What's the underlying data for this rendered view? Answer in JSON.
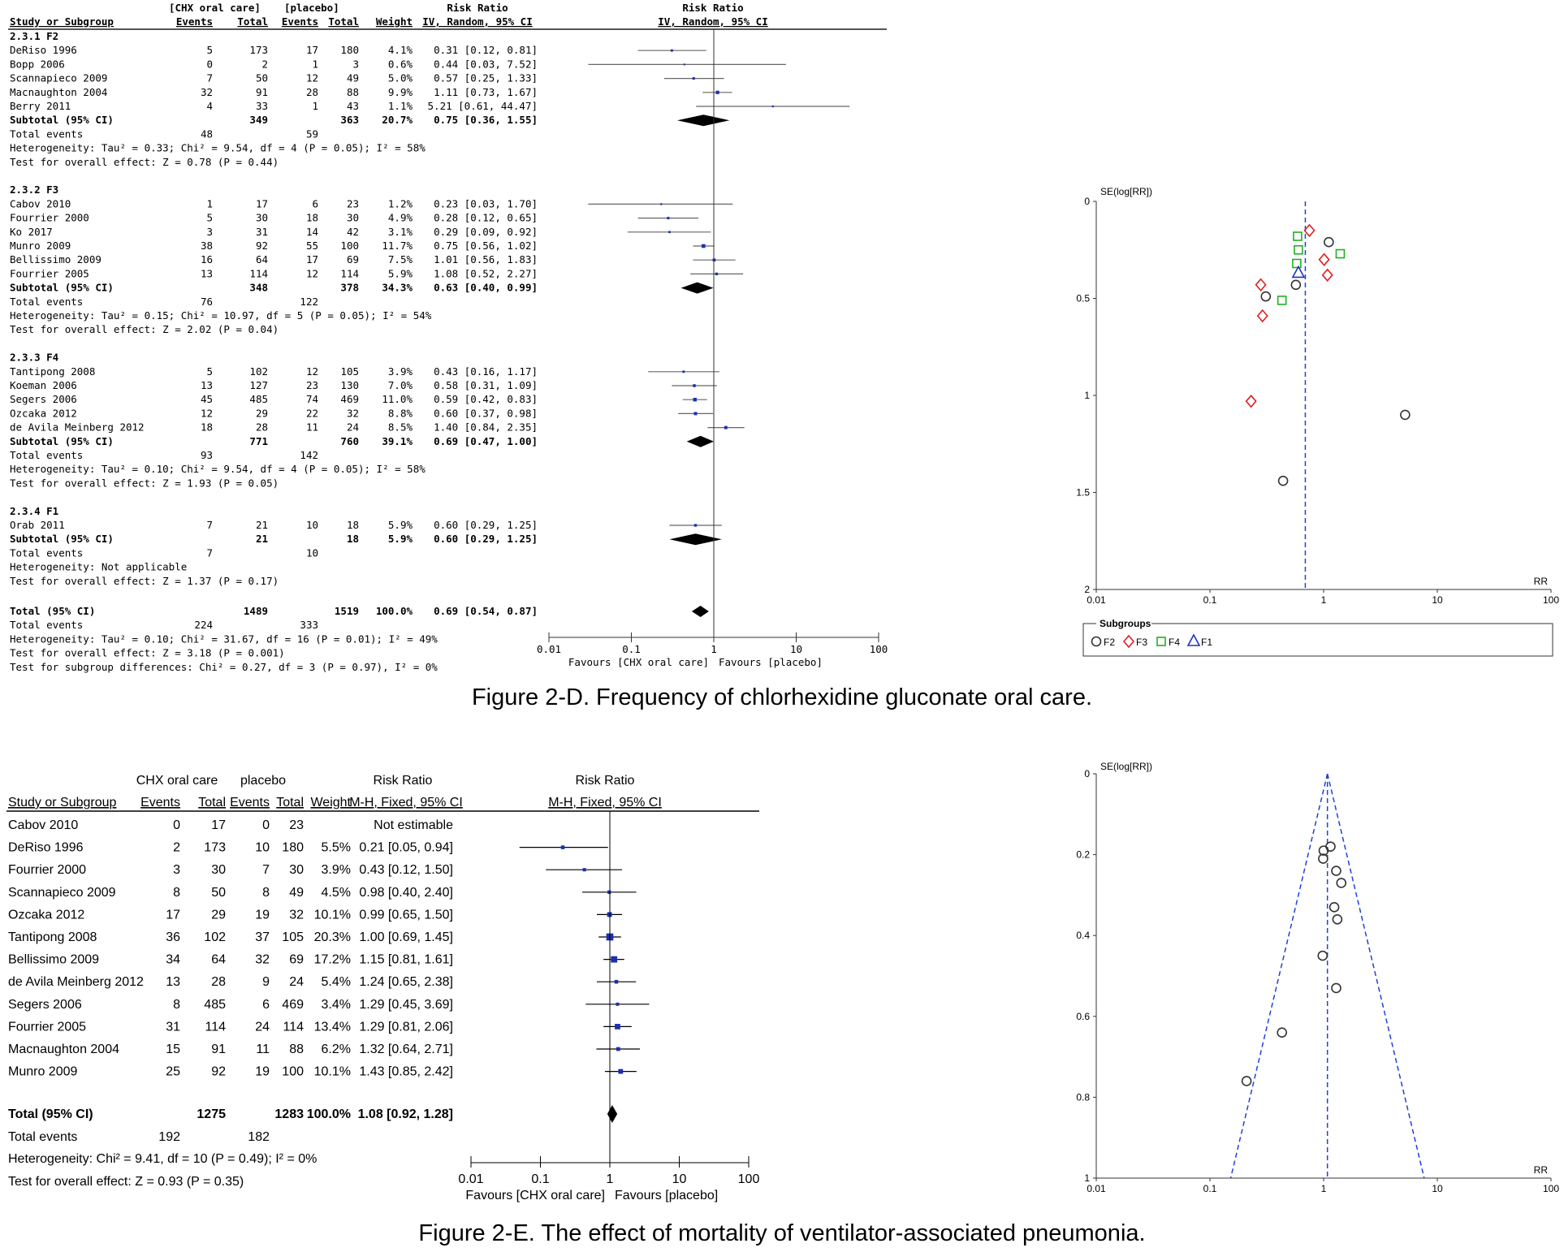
{
  "figure_d": {
    "caption": "Figure 2-D. Frequency of chlorhexidine gluconate oral care.",
    "header": {
      "group1": "[CHX oral care]",
      "group2": "[placebo]",
      "rr": "Risk Ratio",
      "rr_plot": "Risk Ratio",
      "study": "Study or Subgroup",
      "events": "Events",
      "total": "Total",
      "weight": "Weight",
      "method": "IV, Random, 95% CI",
      "method_plot": "IV, Random, 95% CI"
    },
    "subgroups": [
      {
        "title": "2.3.1 F2",
        "studies": [
          {
            "name": "DeRiso 1996",
            "e1": "5",
            "t1": "173",
            "e2": "17",
            "t2": "180",
            "w": "4.1%",
            "ci": "0.31 [0.12, 0.81]"
          },
          {
            "name": "Bopp 2006",
            "e1": "0",
            "t1": "2",
            "e2": "1",
            "t2": "3",
            "w": "0.6%",
            "ci": "0.44 [0.03, 7.52]"
          },
          {
            "name": "Scannapieco 2009",
            "e1": "7",
            "t1": "50",
            "e2": "12",
            "t2": "49",
            "w": "5.0%",
            "ci": "0.57 [0.25, 1.33]"
          },
          {
            "name": "Macnaughton 2004",
            "e1": "32",
            "t1": "91",
            "e2": "28",
            "t2": "88",
            "w": "9.9%",
            "ci": "1.11 [0.73, 1.67]"
          },
          {
            "name": "Berry 2011",
            "e1": "4",
            "t1": "33",
            "e2": "1",
            "t2": "43",
            "w": "1.1%",
            "ci": "5.21 [0.61, 44.47]"
          }
        ],
        "subtotal": {
          "label": "Subtotal (95% CI)",
          "t1": "349",
          "t2": "363",
          "w": "20.7%",
          "ci": "0.75 [0.36, 1.55]"
        },
        "events": {
          "label": "Total events",
          "e1": "48",
          "e2": "59"
        },
        "het": "Heterogeneity: Tau² = 0.33; Chi² = 9.54, df = 4 (P = 0.05); I² = 58%",
        "test": "Test for overall effect: Z = 0.78 (P = 0.44)"
      },
      {
        "title": "2.3.2 F3",
        "studies": [
          {
            "name": "Cabov 2010",
            "e1": "1",
            "t1": "17",
            "e2": "6",
            "t2": "23",
            "w": "1.2%",
            "ci": "0.23 [0.03, 1.70]"
          },
          {
            "name": "Fourrier 2000",
            "e1": "5",
            "t1": "30",
            "e2": "18",
            "t2": "30",
            "w": "4.9%",
            "ci": "0.28 [0.12, 0.65]"
          },
          {
            "name": "Ko 2017",
            "e1": "3",
            "t1": "31",
            "e2": "14",
            "t2": "42",
            "w": "3.1%",
            "ci": "0.29 [0.09, 0.92]"
          },
          {
            "name": "Munro 2009",
            "e1": "38",
            "t1": "92",
            "e2": "55",
            "t2": "100",
            "w": "11.7%",
            "ci": "0.75 [0.56, 1.02]"
          },
          {
            "name": "Bellissimo 2009",
            "e1": "16",
            "t1": "64",
            "e2": "17",
            "t2": "69",
            "w": "7.5%",
            "ci": "1.01 [0.56, 1.83]"
          },
          {
            "name": "Fourrier 2005",
            "e1": "13",
            "t1": "114",
            "e2": "12",
            "t2": "114",
            "w": "5.9%",
            "ci": "1.08 [0.52, 2.27]"
          }
        ],
        "subtotal": {
          "label": "Subtotal (95% CI)",
          "t1": "348",
          "t2": "378",
          "w": "34.3%",
          "ci": "0.63 [0.40, 0.99]"
        },
        "events": {
          "label": "Total events",
          "e1": "76",
          "e2": "122"
        },
        "het": "Heterogeneity: Tau² = 0.15; Chi² = 10.97, df = 5 (P = 0.05); I² = 54%",
        "test": "Test for overall effect: Z = 2.02 (P = 0.04)"
      },
      {
        "title": "2.3.3 F4",
        "studies": [
          {
            "name": "Tantipong 2008",
            "e1": "5",
            "t1": "102",
            "e2": "12",
            "t2": "105",
            "w": "3.9%",
            "ci": "0.43 [0.16, 1.17]"
          },
          {
            "name": "Koeman 2006",
            "e1": "13",
            "t1": "127",
            "e2": "23",
            "t2": "130",
            "w": "7.0%",
            "ci": "0.58 [0.31, 1.09]"
          },
          {
            "name": "Segers 2006",
            "e1": "45",
            "t1": "485",
            "e2": "74",
            "t2": "469",
            "w": "11.0%",
            "ci": "0.59 [0.42, 0.83]"
          },
          {
            "name": "Ozcaka 2012",
            "e1": "12",
            "t1": "29",
            "e2": "22",
            "t2": "32",
            "w": "8.8%",
            "ci": "0.60 [0.37, 0.98]"
          },
          {
            "name": "de Avila Meinberg 2012",
            "e1": "18",
            "t1": "28",
            "e2": "11",
            "t2": "24",
            "w": "8.5%",
            "ci": "1.40 [0.84, 2.35]"
          }
        ],
        "subtotal": {
          "label": "Subtotal (95% CI)",
          "t1": "771",
          "t2": "760",
          "w": "39.1%",
          "ci": "0.69 [0.47, 1.00]"
        },
        "events": {
          "label": "Total events",
          "e1": "93",
          "e2": "142"
        },
        "het": "Heterogeneity: Tau² = 0.10; Chi² = 9.54, df = 4 (P = 0.05); I² = 58%",
        "test": "Test for overall effect: Z = 1.93 (P = 0.05)"
      },
      {
        "title": "2.3.4 F1",
        "studies": [
          {
            "name": "Orab 2011",
            "e1": "7",
            "t1": "21",
            "e2": "10",
            "t2": "18",
            "w": "5.9%",
            "ci": "0.60 [0.29, 1.25]"
          }
        ],
        "subtotal": {
          "label": "Subtotal (95% CI)",
          "t1": "21",
          "t2": "18",
          "w": "5.9%",
          "ci": "0.60 [0.29, 1.25]"
        },
        "events": {
          "label": "Total events",
          "e1": "7",
          "e2": "10"
        },
        "het": "Heterogeneity: Not applicable",
        "test": "Test for overall effect: Z = 1.37 (P = 0.17)"
      }
    ],
    "total": {
      "label": "Total (95% CI)",
      "t1": "1489",
      "t2": "1519",
      "w": "100.0%",
      "ci": "0.69 [0.54, 0.87]"
    },
    "total_events": {
      "label": "Total events",
      "e1": "224",
      "e2": "333"
    },
    "total_het": "Heterogeneity: Tau² = 0.10; Chi² = 31.67, df = 16 (P = 0.01); I² = 49%",
    "total_test": "Test for overall effect: Z = 3.18 (P = 0.001)",
    "subgroup_test": "Test for subgroup differences: Chi² = 0.27, df = 3 (P = 0.97), I² = 0%",
    "axis_ticks": [
      "0.01",
      "0.1",
      "1",
      "10",
      "100"
    ],
    "favours_left": "Favours [CHX oral care]",
    "favours_right": "Favours [placebo]"
  },
  "funnel_d": {
    "ylabel": "SE(log[RR])",
    "xlabel": "RR",
    "x_ticks": [
      "0.01",
      "0.1",
      "1",
      "10",
      "100"
    ],
    "y_ticks": [
      "0",
      "0.5",
      "1",
      "1.5",
      "2"
    ],
    "legend_title": "Subgroups",
    "legend": [
      "F2",
      "F3",
      "F4",
      "F1"
    ],
    "colors": {
      "F2": "#333333",
      "F3": "#e02020",
      "F4": "#20b020",
      "F1": "#2030c0",
      "line": "#2040e0"
    }
  },
  "figure_e": {
    "caption": "Figure 2-E. The effect of mortality of ventilator-associated pneumonia.",
    "header": {
      "group1": "CHX oral care",
      "group2": "placebo",
      "rr": "Risk Ratio",
      "rr_plot": "Risk Ratio",
      "study": "Study or Subgroup",
      "events": "Events",
      "total": "Total",
      "weight": "Weight",
      "method": "M-H, Fixed, 95% CI",
      "method_plot": "M-H, Fixed, 95% CI"
    },
    "studies": [
      {
        "name": "Cabov 2010",
        "e1": "0",
        "t1": "17",
        "e2": "0",
        "t2": "23",
        "w": "",
        "ci": "Not estimable"
      },
      {
        "name": "DeRiso 1996",
        "e1": "2",
        "t1": "173",
        "e2": "10",
        "t2": "180",
        "w": "5.5%",
        "ci": "0.21 [0.05, 0.94]"
      },
      {
        "name": "Fourrier 2000",
        "e1": "3",
        "t1": "30",
        "e2": "7",
        "t2": "30",
        "w": "3.9%",
        "ci": "0.43 [0.12, 1.50]"
      },
      {
        "name": "Scannapieco 2009",
        "e1": "8",
        "t1": "50",
        "e2": "8",
        "t2": "49",
        "w": "4.5%",
        "ci": "0.98 [0.40, 2.40]"
      },
      {
        "name": "Ozcaka 2012",
        "e1": "17",
        "t1": "29",
        "e2": "19",
        "t2": "32",
        "w": "10.1%",
        "ci": "0.99 [0.65, 1.50]"
      },
      {
        "name": "Tantipong 2008",
        "e1": "36",
        "t1": "102",
        "e2": "37",
        "t2": "105",
        "w": "20.3%",
        "ci": "1.00 [0.69, 1.45]"
      },
      {
        "name": "Bellissimo 2009",
        "e1": "34",
        "t1": "64",
        "e2": "32",
        "t2": "69",
        "w": "17.2%",
        "ci": "1.15 [0.81, 1.61]"
      },
      {
        "name": "de Avila Meinberg 2012",
        "e1": "13",
        "t1": "28",
        "e2": "9",
        "t2": "24",
        "w": "5.4%",
        "ci": "1.24 [0.65, 2.38]"
      },
      {
        "name": "Segers 2006",
        "e1": "8",
        "t1": "485",
        "e2": "6",
        "t2": "469",
        "w": "3.4%",
        "ci": "1.29 [0.45, 3.69]"
      },
      {
        "name": "Fourrier 2005",
        "e1": "31",
        "t1": "114",
        "e2": "24",
        "t2": "114",
        "w": "13.4%",
        "ci": "1.29 [0.81, 2.06]"
      },
      {
        "name": "Macnaughton 2004",
        "e1": "15",
        "t1": "91",
        "e2": "11",
        "t2": "88",
        "w": "6.2%",
        "ci": "1.32 [0.64, 2.71]"
      },
      {
        "name": "Munro 2009",
        "e1": "25",
        "t1": "92",
        "e2": "19",
        "t2": "100",
        "w": "10.1%",
        "ci": "1.43 [0.85, 2.42]"
      }
    ],
    "total": {
      "label": "Total (95% CI)",
      "t1": "1275",
      "t2": "1283",
      "w": "100.0%",
      "ci": "1.08 [0.92, 1.28]"
    },
    "total_events": {
      "label": "Total events",
      "e1": "192",
      "e2": "182"
    },
    "het": "Heterogeneity: Chi² = 9.41, df = 10 (P = 0.49); I² = 0%",
    "test": "Test for overall effect: Z = 0.93 (P = 0.35)",
    "axis_ticks": [
      "0.01",
      "0.1",
      "1",
      "10",
      "100"
    ],
    "favours_left": "Favours [CHX oral care]",
    "favours_right": "Favours [placebo]"
  },
  "funnel_e": {
    "ylabel": "SE(log[RR])",
    "xlabel": "RR",
    "x_ticks": [
      "0.01",
      "0.1",
      "1",
      "10",
      "100"
    ],
    "y_ticks": [
      "0",
      "0.2",
      "0.4",
      "0.6",
      "0.8",
      "1"
    ],
    "colors": {
      "line": "#2040e0",
      "points": "#333333"
    }
  },
  "chart_data": [
    {
      "type": "forest",
      "subgroups": [
        "F2",
        "F3",
        "F4",
        "F1"
      ],
      "studies": [
        {
          "subgroup": "F2",
          "rr": 0.31,
          "lo": 0.12,
          "hi": 0.81,
          "weight": 4.1
        },
        {
          "subgroup": "F2",
          "rr": 0.44,
          "lo": 0.03,
          "hi": 7.52,
          "weight": 0.6
        },
        {
          "subgroup": "F2",
          "rr": 0.57,
          "lo": 0.25,
          "hi": 1.33,
          "weight": 5.0
        },
        {
          "subgroup": "F2",
          "rr": 1.11,
          "lo": 0.73,
          "hi": 1.67,
          "weight": 9.9
        },
        {
          "subgroup": "F2",
          "rr": 5.21,
          "lo": 0.61,
          "hi": 44.47,
          "weight": 1.1
        },
        {
          "subgroup": "F2",
          "summary": true,
          "rr": 0.75,
          "lo": 0.36,
          "hi": 1.55
        },
        {
          "subgroup": "F3",
          "rr": 0.23,
          "lo": 0.03,
          "hi": 1.7,
          "weight": 1.2
        },
        {
          "subgroup": "F3",
          "rr": 0.28,
          "lo": 0.12,
          "hi": 0.65,
          "weight": 4.9
        },
        {
          "subgroup": "F3",
          "rr": 0.29,
          "lo": 0.09,
          "hi": 0.92,
          "weight": 3.1
        },
        {
          "subgroup": "F3",
          "rr": 0.75,
          "lo": 0.56,
          "hi": 1.02,
          "weight": 11.7
        },
        {
          "subgroup": "F3",
          "rr": 1.01,
          "lo": 0.56,
          "hi": 1.83,
          "weight": 7.5
        },
        {
          "subgroup": "F3",
          "rr": 1.08,
          "lo": 0.52,
          "hi": 2.27,
          "weight": 5.9
        },
        {
          "subgroup": "F3",
          "summary": true,
          "rr": 0.63,
          "lo": 0.4,
          "hi": 0.99
        },
        {
          "subgroup": "F4",
          "rr": 0.43,
          "lo": 0.16,
          "hi": 1.17,
          "weight": 3.9
        },
        {
          "subgroup": "F4",
          "rr": 0.58,
          "lo": 0.31,
          "hi": 1.09,
          "weight": 7.0
        },
        {
          "subgroup": "F4",
          "rr": 0.59,
          "lo": 0.42,
          "hi": 0.83,
          "weight": 11.0
        },
        {
          "subgroup": "F4",
          "rr": 0.6,
          "lo": 0.37,
          "hi": 0.98,
          "weight": 8.8
        },
        {
          "subgroup": "F4",
          "rr": 1.4,
          "lo": 0.84,
          "hi": 2.35,
          "weight": 8.5
        },
        {
          "subgroup": "F4",
          "summary": true,
          "rr": 0.69,
          "lo": 0.47,
          "hi": 1.0
        },
        {
          "subgroup": "F1",
          "rr": 0.6,
          "lo": 0.29,
          "hi": 1.25,
          "weight": 5.9
        },
        {
          "subgroup": "F1",
          "summary": true,
          "rr": 0.6,
          "lo": 0.29,
          "hi": 1.25
        },
        {
          "subgroup": "Total",
          "summary": true,
          "rr": 0.69,
          "lo": 0.54,
          "hi": 0.87
        }
      ],
      "xscale": "log",
      "xlim": [
        0.01,
        100
      ]
    },
    {
      "type": "scatter",
      "xlabel": "RR",
      "ylabel": "SE(log[RR])",
      "xscale": "log",
      "xlim": [
        0.01,
        100
      ],
      "ylim": [
        0,
        2
      ],
      "y_inverted": true,
      "reference_rr": 0.69,
      "series": [
        {
          "name": "F2",
          "marker": "circle",
          "points": [
            [
              0.31,
              0.49
            ],
            [
              0.44,
              1.44
            ],
            [
              0.57,
              0.43
            ],
            [
              1.11,
              0.21
            ],
            [
              5.21,
              1.1
            ]
          ]
        },
        {
          "name": "F3",
          "marker": "diamond",
          "points": [
            [
              0.23,
              1.03
            ],
            [
              0.28,
              0.43
            ],
            [
              0.29,
              0.59
            ],
            [
              0.75,
              0.15
            ],
            [
              1.01,
              0.3
            ],
            [
              1.08,
              0.38
            ]
          ]
        },
        {
          "name": "F4",
          "marker": "square",
          "points": [
            [
              0.43,
              0.51
            ],
            [
              0.58,
              0.32
            ],
            [
              0.59,
              0.18
            ],
            [
              0.6,
              0.25
            ],
            [
              1.4,
              0.27
            ]
          ]
        },
        {
          "name": "F1",
          "marker": "triangle",
          "points": [
            [
              0.6,
              0.37
            ]
          ]
        }
      ]
    },
    {
      "type": "forest",
      "studies": [
        {
          "rr": 0.21,
          "lo": 0.05,
          "hi": 0.94,
          "weight": 5.5
        },
        {
          "rr": 0.43,
          "lo": 0.12,
          "hi": 1.5,
          "weight": 3.9
        },
        {
          "rr": 0.98,
          "lo": 0.4,
          "hi": 2.4,
          "weight": 4.5
        },
        {
          "rr": 0.99,
          "lo": 0.65,
          "hi": 1.5,
          "weight": 10.1
        },
        {
          "rr": 1.0,
          "lo": 0.69,
          "hi": 1.45,
          "weight": 20.3
        },
        {
          "rr": 1.15,
          "lo": 0.81,
          "hi": 1.61,
          "weight": 17.2
        },
        {
          "rr": 1.24,
          "lo": 0.65,
          "hi": 2.38,
          "weight": 5.4
        },
        {
          "rr": 1.29,
          "lo": 0.45,
          "hi": 3.69,
          "weight": 3.4
        },
        {
          "rr": 1.29,
          "lo": 0.81,
          "hi": 2.06,
          "weight": 13.4
        },
        {
          "rr": 1.32,
          "lo": 0.64,
          "hi": 2.71,
          "weight": 6.2
        },
        {
          "rr": 1.43,
          "lo": 0.85,
          "hi": 2.42,
          "weight": 10.1
        },
        {
          "summary": true,
          "rr": 1.08,
          "lo": 0.92,
          "hi": 1.28
        }
      ],
      "xscale": "log",
      "xlim": [
        0.01,
        100
      ]
    },
    {
      "type": "scatter",
      "xlabel": "RR",
      "ylabel": "SE(log[RR])",
      "xscale": "log",
      "xlim": [
        0.01,
        100
      ],
      "ylim": [
        0,
        1
      ],
      "y_inverted": true,
      "reference_rr": 1.08,
      "series": [
        {
          "marker": "circle",
          "points": [
            [
              0.21,
              0.76
            ],
            [
              0.43,
              0.64
            ],
            [
              0.98,
              0.45
            ],
            [
              0.99,
              0.21
            ],
            [
              1.0,
              0.19
            ],
            [
              1.15,
              0.18
            ],
            [
              1.24,
              0.33
            ],
            [
              1.29,
              0.53
            ],
            [
              1.29,
              0.24
            ],
            [
              1.32,
              0.36
            ],
            [
              1.43,
              0.27
            ]
          ]
        }
      ]
    }
  ]
}
